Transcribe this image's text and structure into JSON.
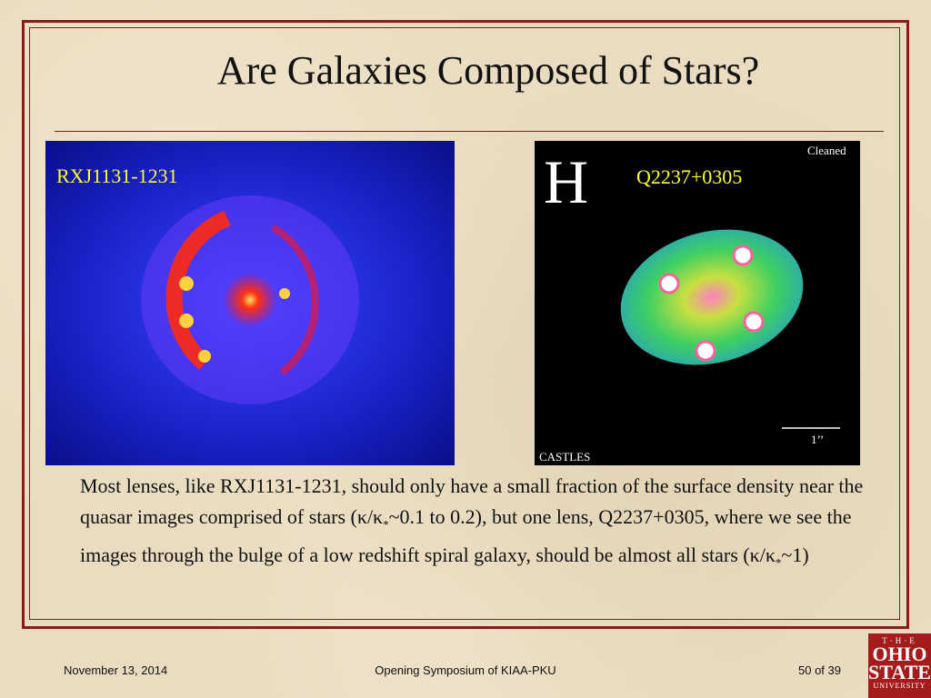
{
  "header": {
    "title": "Are Galaxies Composed of Stars?"
  },
  "images": [
    {
      "label": "RXJ1131-1231"
    },
    {
      "band": "H",
      "label": "Q2237+0305",
      "note": "Cleaned",
      "scale": "1’’",
      "credit": "CASTLES"
    }
  ],
  "body": {
    "segments": [
      {
        "text": "Most lenses, like RXJ1131-1231, should only have a small fraction of the surface density near the quasar images comprised of stars (κ/κ"
      },
      {
        "text": "*",
        "sub": true
      },
      {
        "text": "~0.1 to 0.2), but one lens, Q2237+0305, where we see the images through the bulge of a low redshift spiral galaxy, should be almost all stars (κ/κ"
      },
      {
        "text": "*",
        "sub": true
      },
      {
        "text": "~1)"
      }
    ]
  },
  "footer": {
    "date": "November 13, 2014",
    "event": "Opening Symposium of KIAA-PKU",
    "page": "50 of 39",
    "logo": [
      "T·H·E",
      "OHIO",
      "STATE",
      "UNIVERSITY"
    ]
  }
}
